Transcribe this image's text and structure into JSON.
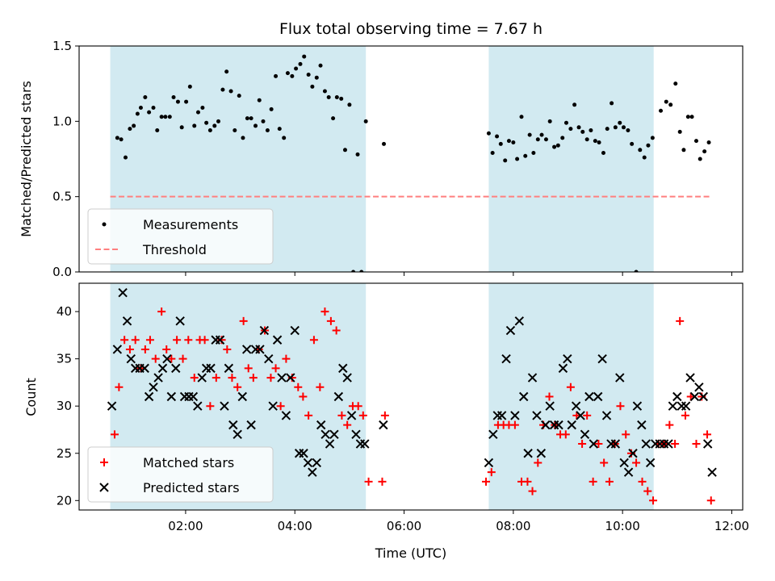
{
  "chart_data": {
    "type": "scatter",
    "title": "Flux total observing time = 7.67 h",
    "xlabel": "Time (UTC)",
    "x_unit": "hours UTC",
    "xlim": [
      0.05,
      12.2
    ],
    "x_ticks": [
      {
        "value": 2,
        "label": "02:00"
      },
      {
        "value": 4,
        "label": "04:00"
      },
      {
        "value": 6,
        "label": "06:00"
      },
      {
        "value": 8,
        "label": "08:00"
      },
      {
        "value": 10,
        "label": "10:00"
      },
      {
        "value": 12,
        "label": "12:00"
      }
    ],
    "shaded_intervals": [
      [
        0.62,
        5.3
      ],
      [
        7.55,
        10.57
      ]
    ],
    "shade_color": "#add8e6",
    "panels": [
      {
        "ylabel": "Matched/Predicted stars",
        "ylim": [
          0,
          1.5
        ],
        "y_ticks": [
          0.0,
          0.5,
          1.0,
          1.5
        ],
        "y_tick_labels": [
          "0.0",
          "0.5",
          "1.0",
          "1.5"
        ],
        "threshold": {
          "name": "Threshold",
          "value": 0.5,
          "x_range": [
            0.62,
            11.6
          ],
          "color": "#ff7f7f"
        },
        "series": [
          {
            "name": "Measurements",
            "marker": "dot",
            "color": "#000000",
            "x": [
              0.75,
              0.82,
              0.9,
              0.98,
              1.05,
              1.12,
              1.18,
              1.26,
              1.33,
              1.41,
              1.48,
              1.56,
              1.63,
              1.71,
              1.78,
              1.86,
              1.93,
              2.01,
              2.08,
              2.16,
              2.23,
              2.31,
              2.38,
              2.45,
              2.53,
              2.6,
              2.68,
              2.75,
              2.83,
              2.9,
              2.98,
              3.05,
              3.13,
              3.2,
              3.28,
              3.35,
              3.42,
              3.5,
              3.57,
              3.65,
              3.72,
              3.8,
              3.87,
              3.95,
              4.02,
              4.1,
              4.17,
              4.25,
              4.32,
              4.4,
              4.47,
              4.55,
              4.62,
              4.7,
              4.77,
              4.85,
              4.92,
              5.0,
              5.07,
              5.15,
              5.22,
              5.3,
              5.63,
              7.55,
              7.62,
              7.7,
              7.77,
              7.85,
              7.92,
              8.0,
              8.07,
              8.15,
              8.22,
              8.3,
              8.37,
              8.45,
              8.52,
              8.6,
              8.67,
              8.75,
              8.82,
              8.9,
              8.97,
              9.05,
              9.12,
              9.2,
              9.27,
              9.35,
              9.42,
              9.5,
              9.57,
              9.65,
              9.72,
              9.8,
              9.87,
              9.95,
              10.02,
              10.1,
              10.17,
              10.25,
              10.32,
              10.4,
              10.47,
              10.55,
              10.7,
              10.8,
              10.88,
              10.97,
              11.05,
              11.12,
              11.2,
              11.27,
              11.35,
              11.42,
              11.5,
              11.58
            ],
            "y": [
              0.89,
              0.88,
              0.76,
              0.95,
              0.97,
              1.05,
              1.09,
              1.16,
              1.06,
              1.09,
              0.94,
              1.03,
              1.03,
              1.03,
              1.16,
              1.13,
              0.96,
              1.13,
              1.23,
              0.97,
              1.06,
              1.09,
              0.99,
              0.94,
              0.97,
              1.0,
              1.21,
              1.33,
              1.2,
              0.94,
              1.17,
              0.89,
              1.02,
              1.02,
              0.97,
              1.14,
              1.0,
              0.94,
              1.08,
              1.3,
              0.95,
              0.89,
              1.32,
              1.3,
              1.35,
              1.38,
              1.43,
              1.31,
              1.23,
              1.29,
              1.37,
              1.2,
              1.16,
              1.02,
              1.16,
              1.15,
              0.81,
              1.11,
              0.0,
              0.78,
              0.0,
              1.0,
              0.85,
              0.92,
              0.79,
              0.9,
              0.85,
              0.74,
              0.87,
              0.86,
              0.75,
              1.03,
              0.77,
              0.91,
              0.79,
              0.88,
              0.91,
              0.88,
              1.0,
              0.83,
              0.84,
              0.89,
              0.99,
              0.95,
              1.11,
              0.96,
              0.93,
              0.88,
              0.94,
              0.87,
              0.86,
              0.79,
              0.95,
              1.12,
              0.96,
              0.99,
              0.96,
              0.94,
              0.85,
              0.0,
              0.81,
              0.76,
              0.84,
              0.89,
              1.07,
              1.13,
              1.11,
              1.25,
              0.93,
              0.81,
              1.03,
              1.03,
              0.87,
              0.75,
              0.8,
              0.86
            ]
          }
        ],
        "legend": {
          "location": "lower-left",
          "entries": [
            "Measurements",
            "Threshold"
          ]
        }
      },
      {
        "ylabel": "Count",
        "ylim": [
          19,
          43
        ],
        "y_ticks": [
          20,
          25,
          30,
          35,
          40
        ],
        "y_tick_labels": [
          "20",
          "25",
          "30",
          "35",
          "40"
        ],
        "series": [
          {
            "name": "Matched stars",
            "marker": "plus",
            "color": "#ff0000",
            "x": [
              0.7,
              0.78,
              0.88,
              0.98,
              1.08,
              1.18,
              1.26,
              1.35,
              1.45,
              1.56,
              1.65,
              1.74,
              1.84,
              1.95,
              2.05,
              2.16,
              2.26,
              2.35,
              2.45,
              2.56,
              2.66,
              2.76,
              2.85,
              2.95,
              3.06,
              3.15,
              3.24,
              3.34,
              3.45,
              3.56,
              3.65,
              3.74,
              3.84,
              3.95,
              4.06,
              4.15,
              4.25,
              4.35,
              4.46,
              4.55,
              4.66,
              4.76,
              4.86,
              4.96,
              5.06,
              5.16,
              5.25,
              5.35,
              5.6,
              5.65,
              7.5,
              7.6,
              7.72,
              7.82,
              7.92,
              8.03,
              8.15,
              8.26,
              8.35,
              8.45,
              8.55,
              8.66,
              8.76,
              8.86,
              8.96,
              9.05,
              9.16,
              9.26,
              9.35,
              9.46,
              9.56,
              9.66,
              9.76,
              9.86,
              9.96,
              10.06,
              10.16,
              10.25,
              10.36,
              10.46,
              10.56,
              10.66,
              10.76,
              10.86,
              10.96,
              11.05,
              11.15,
              11.25,
              11.35,
              11.45,
              11.55,
              11.62
            ],
            "y": [
              27,
              32,
              37,
              36,
              37,
              34,
              36,
              37,
              35,
              40,
              36,
              35,
              37,
              35,
              37,
              33,
              37,
              37,
              30,
              33,
              37,
              36,
              33,
              32,
              39,
              34,
              33,
              36,
              38,
              33,
              34,
              30,
              35,
              33,
              32,
              31,
              29,
              37,
              32,
              40,
              39,
              38,
              29,
              28,
              30,
              30,
              29,
              22,
              22,
              29,
              22,
              23,
              28,
              28,
              28,
              28,
              22,
              22,
              21,
              24,
              28,
              31,
              28,
              27,
              27,
              32,
              29,
              26,
              29,
              22,
              26,
              24,
              22,
              26,
              30,
              27,
              25,
              24,
              22,
              21,
              20,
              26,
              26,
              28,
              26,
              39,
              29,
              31,
              26,
              31,
              27,
              20
            ]
          },
          {
            "name": "Predicted stars",
            "marker": "x",
            "color": "#000000",
            "x": [
              0.65,
              0.75,
              0.85,
              0.93,
              1.0,
              1.08,
              1.16,
              1.25,
              1.33,
              1.41,
              1.5,
              1.58,
              1.66,
              1.74,
              1.82,
              1.9,
              1.98,
              2.06,
              2.14,
              2.22,
              2.3,
              2.38,
              2.46,
              2.55,
              2.63,
              2.71,
              2.79,
              2.87,
              2.95,
              3.04,
              3.12,
              3.2,
              3.28,
              3.36,
              3.44,
              3.52,
              3.6,
              3.68,
              3.76,
              3.84,
              3.92,
              4.0,
              4.08,
              4.16,
              4.24,
              4.32,
              4.4,
              4.48,
              4.56,
              4.64,
              4.72,
              4.8,
              4.88,
              4.96,
              5.04,
              5.12,
              5.2,
              5.28,
              5.62,
              7.55,
              7.63,
              7.71,
              7.79,
              7.87,
              7.95,
              8.03,
              8.11,
              8.19,
              8.27,
              8.35,
              8.43,
              8.51,
              8.59,
              8.67,
              8.75,
              8.83,
              8.91,
              8.99,
              9.07,
              9.15,
              9.23,
              9.31,
              9.39,
              9.47,
              9.55,
              9.63,
              9.71,
              9.79,
              9.87,
              9.95,
              10.03,
              10.11,
              10.19,
              10.27,
              10.35,
              10.43,
              10.51,
              10.6,
              10.68,
              10.76,
              10.84,
              10.92,
              11.0,
              11.08,
              11.16,
              11.24,
              11.32,
              11.4,
              11.48,
              11.56,
              11.64
            ],
            "y": [
              30,
              36,
              42,
              39,
              35,
              34,
              34,
              34,
              31,
              32,
              33,
              34,
              35,
              31,
              34,
              39,
              31,
              31,
              31,
              30,
              33,
              34,
              34,
              37,
              37,
              30,
              34,
              28,
              27,
              31,
              36,
              28,
              36,
              36,
              38,
              35,
              30,
              37,
              33,
              29,
              33,
              38,
              25,
              25,
              24,
              23,
              24,
              28,
              27,
              26,
              27,
              31,
              34,
              33,
              29,
              27,
              26,
              26,
              28,
              24,
              27,
              29,
              29,
              35,
              38,
              29,
              39,
              31,
              25,
              33,
              29,
              25,
              28,
              30,
              28,
              28,
              34,
              35,
              28,
              30,
              29,
              27,
              31,
              26,
              31,
              35,
              29,
              26,
              26,
              33,
              24,
              23,
              25,
              30,
              28,
              26,
              24,
              26,
              26,
              26,
              26,
              30,
              31,
              30,
              30,
              33,
              31,
              32,
              31,
              26,
              23
            ]
          }
        ],
        "legend": {
          "location": "lower-left",
          "entries": [
            "Matched stars",
            "Predicted stars"
          ]
        }
      }
    ]
  }
}
